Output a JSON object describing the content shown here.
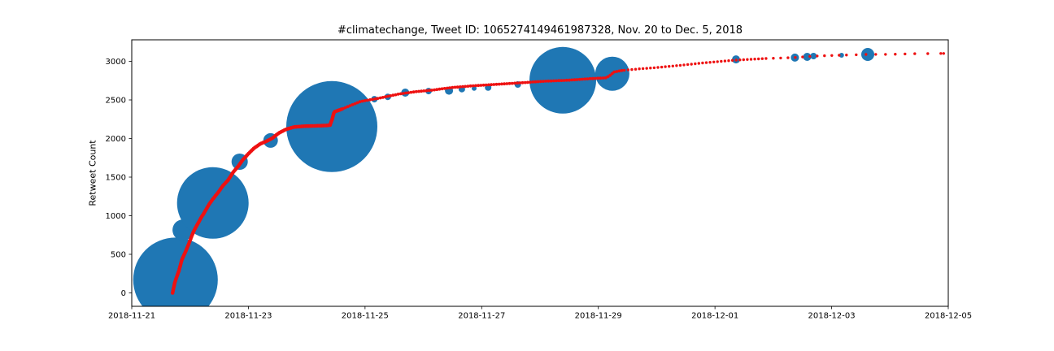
{
  "chart_data": {
    "type": "scatter",
    "title": "#climatechange, Tweet ID: 1065274149461987328, Nov. 20 to Dec. 5, 2018",
    "xlabel": "",
    "ylabel": "Retweet Count",
    "grid": false,
    "legend": "none",
    "x_axis": {
      "tick_labels": [
        "2018-11-21",
        "2018-11-23",
        "2018-11-25",
        "2018-11-27",
        "2018-11-29",
        "2018-12-01",
        "2018-12-03",
        "2018-12-05"
      ],
      "tick_days": [
        0,
        2,
        4,
        6,
        8,
        10,
        12,
        14
      ],
      "range_days": [
        0,
        14
      ]
    },
    "y_axis": {
      "ticks": [
        0,
        500,
        1000,
        1500,
        2000,
        2500,
        3000
      ],
      "lim": [
        -163,
        3280
      ]
    },
    "colors": {
      "bubbles": "#1f77b4",
      "line": "#ee1111",
      "spine": "#000000"
    },
    "series": [
      {
        "name": "cumulative-retweet-count",
        "type": "dotted-line",
        "color": "#ee1111",
        "points_day_count": [
          [
            0.7,
            0
          ],
          [
            0.74,
            140
          ],
          [
            0.81,
            290
          ],
          [
            0.86,
            430
          ],
          [
            0.92,
            530
          ],
          [
            0.98,
            640
          ],
          [
            1.02,
            720
          ],
          [
            1.06,
            795
          ],
          [
            1.12,
            880
          ],
          [
            1.19,
            975
          ],
          [
            1.26,
            1060
          ],
          [
            1.32,
            1140
          ],
          [
            1.39,
            1215
          ],
          [
            1.48,
            1300
          ],
          [
            1.56,
            1385
          ],
          [
            1.65,
            1460
          ],
          [
            1.74,
            1565
          ],
          [
            1.83,
            1645
          ],
          [
            1.9,
            1720
          ],
          [
            1.99,
            1795
          ],
          [
            2.09,
            1870
          ],
          [
            2.2,
            1930
          ],
          [
            2.31,
            1965
          ],
          [
            2.41,
            2005
          ],
          [
            2.52,
            2070
          ],
          [
            2.65,
            2120
          ],
          [
            2.79,
            2150
          ],
          [
            2.97,
            2160
          ],
          [
            3.2,
            2165
          ],
          [
            3.4,
            2172
          ],
          [
            3.44,
            2260
          ],
          [
            3.47,
            2345
          ],
          [
            3.6,
            2380
          ],
          [
            3.74,
            2425
          ],
          [
            3.92,
            2480
          ],
          [
            4.09,
            2502
          ],
          [
            4.3,
            2532
          ],
          [
            4.57,
            2575
          ],
          [
            4.85,
            2605
          ],
          [
            5.13,
            2625
          ],
          [
            5.48,
            2660
          ],
          [
            5.83,
            2682
          ],
          [
            6.25,
            2702
          ],
          [
            6.67,
            2722
          ],
          [
            7.08,
            2742
          ],
          [
            7.5,
            2756
          ],
          [
            7.85,
            2775
          ],
          [
            8.13,
            2786
          ],
          [
            8.2,
            2818
          ],
          [
            8.27,
            2862
          ],
          [
            8.41,
            2882
          ],
          [
            8.69,
            2902
          ],
          [
            9.04,
            2922
          ],
          [
            9.45,
            2952
          ],
          [
            9.87,
            2985
          ],
          [
            10.36,
            3016
          ],
          [
            10.85,
            3036
          ],
          [
            11.34,
            3048
          ],
          [
            11.69,
            3068
          ],
          [
            12.17,
            3080
          ],
          [
            12.62,
            3090
          ],
          [
            12.94,
            3090
          ],
          [
            13.36,
            3098
          ],
          [
            13.92,
            3102
          ]
        ]
      },
      {
        "name": "influential-retweeter-bubbles",
        "type": "bubble",
        "color": "#1f77b4",
        "points_day_count_radius": [
          [
            0.75,
            170,
            52
          ],
          [
            0.88,
            815,
            13
          ],
          [
            0.99,
            975,
            10
          ],
          [
            1.39,
            1165,
            44
          ],
          [
            1.85,
            1700,
            10
          ],
          [
            2.38,
            1975,
            9
          ],
          [
            3.43,
            2155,
            56
          ],
          [
            4.16,
            2510,
            4
          ],
          [
            4.39,
            2540,
            4
          ],
          [
            4.69,
            2595,
            5
          ],
          [
            5.09,
            2615,
            4
          ],
          [
            5.44,
            2620,
            5
          ],
          [
            5.66,
            2640,
            4
          ],
          [
            5.87,
            2650,
            3
          ],
          [
            6.11,
            2660,
            4
          ],
          [
            6.62,
            2700,
            4
          ],
          [
            7.39,
            2755,
            41
          ],
          [
            8.24,
            2840,
            21
          ],
          [
            10.36,
            3025,
            5
          ],
          [
            11.37,
            3048,
            5
          ],
          [
            11.58,
            3058,
            5
          ],
          [
            11.69,
            3068,
            4
          ],
          [
            12.17,
            3079,
            3
          ],
          [
            12.62,
            3089,
            8
          ]
        ]
      }
    ],
    "line_dot_spacing_by_day": [
      [
        3.5,
        2.2
      ],
      [
        8.3,
        3.2
      ],
      [
        10.4,
        4.6
      ],
      [
        12.0,
        9
      ],
      [
        13.0,
        12
      ],
      [
        14.2,
        16
      ]
    ],
    "line_dot_radius_by_day": [
      [
        3.5,
        2.3
      ],
      [
        8.3,
        1.9
      ],
      [
        14.2,
        1.7
      ]
    ]
  }
}
